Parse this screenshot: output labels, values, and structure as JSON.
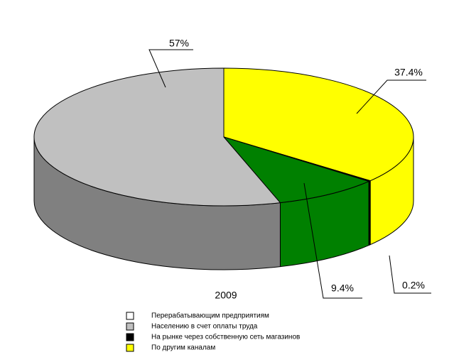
{
  "chart_data": {
    "type": "pie3d",
    "title": "2009",
    "slices": [
      {
        "value": 37.4,
        "value_label": "37.4%",
        "color": "#ffff00",
        "side_color": "#ffff00"
      },
      {
        "value": 0.2,
        "value_label": "0.2%",
        "color": "#000000",
        "side_color": "#000000"
      },
      {
        "value": 9.4,
        "value_label": "9.4%",
        "color": "#008000",
        "side_color": "#008000"
      },
      {
        "value": 57,
        "value_label": "57%",
        "color": "#c0c0c0",
        "side_color": "#808080"
      }
    ],
    "legend": [
      {
        "name": "Перерабатывающим предприятиям",
        "color": "#ffffff"
      },
      {
        "name": "Населению в счет оплаты труда",
        "color": "#c0c0c0"
      },
      {
        "name": "На рынке через собственную сеть магазинов",
        "color": "#000000"
      },
      {
        "name": "По другим каналам",
        "color": "#ffff00"
      }
    ]
  }
}
